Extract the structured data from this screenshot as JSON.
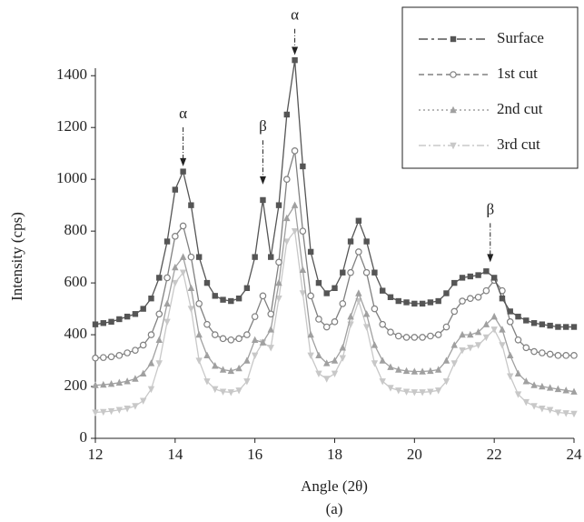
{
  "chart_data": {
    "type": "line",
    "x_label": "Angle (2θ)",
    "y_label": "Intensity (cps)",
    "caption": "(a)",
    "x": [
      12,
      12.2,
      12.4,
      12.6,
      12.8,
      13,
      13.2,
      13.4,
      13.6,
      13.8,
      14,
      14.2,
      14.4,
      14.6,
      14.8,
      15,
      15.2,
      15.4,
      15.6,
      15.8,
      16,
      16.2,
      16.4,
      16.6,
      16.8,
      17,
      17.2,
      17.4,
      17.6,
      17.8,
      18,
      18.2,
      18.4,
      18.6,
      18.8,
      19,
      19.2,
      19.4,
      19.6,
      19.8,
      20,
      20.2,
      20.4,
      20.6,
      20.8,
      21,
      21.2,
      21.4,
      21.6,
      21.8,
      22,
      22.2,
      22.4,
      22.6,
      22.8,
      23,
      23.2,
      23.4,
      23.6,
      23.8,
      24
    ],
    "series": [
      {
        "name": "Surface",
        "color": "#555555",
        "marker": "square",
        "dash": "10 4 3 4",
        "values": [
          440,
          445,
          450,
          460,
          470,
          480,
          500,
          540,
          620,
          760,
          960,
          1030,
          900,
          700,
          600,
          550,
          535,
          530,
          540,
          580,
          700,
          920,
          700,
          900,
          1250,
          1460,
          1050,
          720,
          600,
          560,
          580,
          640,
          760,
          840,
          760,
          640,
          570,
          545,
          530,
          525,
          520,
          520,
          525,
          530,
          560,
          600,
          620,
          625,
          630,
          645,
          620,
          540,
          490,
          470,
          455,
          445,
          440,
          435,
          430,
          430,
          430
        ]
      },
      {
        "name": "1st cut",
        "color": "#808080",
        "marker": "circle",
        "dash": "6 4",
        "values": [
          310,
          312,
          315,
          320,
          330,
          340,
          360,
          400,
          480,
          620,
          780,
          820,
          700,
          520,
          440,
          400,
          385,
          380,
          385,
          400,
          470,
          550,
          480,
          680,
          1000,
          1110,
          800,
          550,
          460,
          430,
          450,
          520,
          640,
          720,
          640,
          500,
          440,
          410,
          395,
          390,
          390,
          390,
          395,
          400,
          430,
          490,
          530,
          540,
          545,
          570,
          610,
          570,
          450,
          380,
          350,
          335,
          330,
          325,
          320,
          320,
          320
        ]
      },
      {
        "name": "2nd cut",
        "color": "#a0a0a0",
        "marker": "triangle",
        "dash": "2 3",
        "values": [
          205,
          207,
          210,
          215,
          220,
          230,
          250,
          290,
          380,
          520,
          660,
          700,
          580,
          400,
          320,
          280,
          265,
          260,
          270,
          300,
          380,
          370,
          420,
          600,
          850,
          900,
          650,
          400,
          320,
          290,
          300,
          350,
          470,
          560,
          480,
          360,
          300,
          275,
          265,
          260,
          258,
          258,
          260,
          265,
          300,
          360,
          400,
          400,
          410,
          440,
          470,
          420,
          320,
          250,
          220,
          205,
          200,
          195,
          190,
          185,
          180
        ]
      },
      {
        "name": "3rd cut",
        "color": "#c8c8c8",
        "marker": "triangle-down",
        "dash": "8 3 2 3",
        "values": [
          100,
          102,
          105,
          110,
          115,
          125,
          145,
          190,
          290,
          450,
          600,
          640,
          500,
          300,
          220,
          190,
          180,
          178,
          185,
          220,
          320,
          370,
          350,
          540,
          760,
          800,
          560,
          320,
          250,
          230,
          250,
          310,
          440,
          530,
          430,
          290,
          220,
          195,
          185,
          180,
          178,
          178,
          180,
          185,
          220,
          290,
          340,
          350,
          360,
          390,
          420,
          360,
          240,
          170,
          140,
          125,
          115,
          110,
          100,
          97,
          95
        ]
      }
    ],
    "annotations": [
      {
        "text": "α",
        "x": 14.2,
        "y": 1050,
        "label_y": 1250
      },
      {
        "text": "β",
        "x": 16.2,
        "y": 980,
        "label_y": 1200
      },
      {
        "text": "α",
        "x": 17.0,
        "y": 1480,
        "label_y": 1630
      },
      {
        "text": "β",
        "x": 21.9,
        "y": 680,
        "label_y": 880
      }
    ],
    "xlim": [
      12,
      24
    ],
    "xticks": [
      12,
      14,
      16,
      18,
      20,
      22,
      24
    ],
    "ylim": [
      0,
      1450
    ],
    "yticks": [
      0,
      200,
      400,
      600,
      800,
      1000,
      1200,
      1400
    ],
    "legend": "upper right"
  }
}
